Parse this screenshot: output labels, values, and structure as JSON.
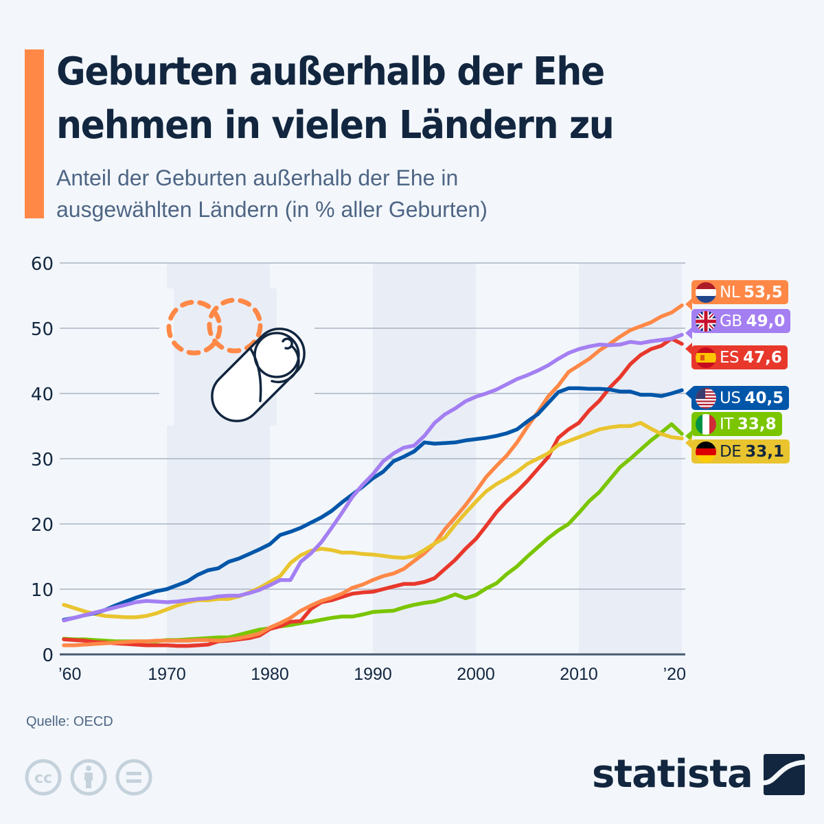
{
  "header": {
    "title_line1": "Geburten außerhalb der Ehe",
    "title_line2": "nehmen in vielen Ländern zu",
    "subtitle_line1": "Anteil der Geburten außerhalb der Ehe in",
    "subtitle_line2": "ausgewählten Ländern (in % aller Geburten)",
    "accent_color": "#ff8847"
  },
  "footer": {
    "source": "Quelle: OECD",
    "license_icons": [
      "cc-icon",
      "attribution-icon",
      "no-derivatives-icon"
    ],
    "brand": "statista"
  },
  "chart_data": {
    "type": "line",
    "title": "Anteil der Geburten außerhalb der Ehe in ausgewählten Ländern (in % aller Geburten)",
    "xlabel": "",
    "ylabel": "",
    "ylim": [
      0,
      60
    ],
    "xlim": [
      1960,
      2020
    ],
    "yticks": [
      0,
      10,
      20,
      30,
      40,
      50,
      60
    ],
    "xticks": [
      {
        "value": 1960,
        "label": "’60"
      },
      {
        "value": 1970,
        "label": "1970"
      },
      {
        "value": 1980,
        "label": "1980"
      },
      {
        "value": 1990,
        "label": "1990"
      },
      {
        "value": 2000,
        "label": "2000"
      },
      {
        "value": 2010,
        "label": "2010"
      },
      {
        "value": 2020,
        "label": "’20"
      }
    ],
    "shaded_decades": [
      [
        1970,
        1980
      ],
      [
        1990,
        2000
      ],
      [
        2010,
        2020
      ]
    ],
    "grid": true,
    "legend": "end-labels-right",
    "x": [
      1960,
      1961,
      1962,
      1963,
      1964,
      1965,
      1966,
      1967,
      1968,
      1969,
      1970,
      1971,
      1972,
      1973,
      1974,
      1975,
      1976,
      1977,
      1978,
      1979,
      1980,
      1981,
      1982,
      1983,
      1984,
      1985,
      1986,
      1987,
      1988,
      1989,
      1990,
      1991,
      1992,
      1993,
      1994,
      1995,
      1996,
      1997,
      1998,
      1999,
      2000,
      2001,
      2002,
      2003,
      2004,
      2005,
      2006,
      2007,
      2008,
      2009,
      2010,
      2011,
      2012,
      2013,
      2014,
      2015,
      2016,
      2017,
      2018,
      2019,
      2020
    ],
    "series": [
      {
        "name": "NL",
        "label": "NL",
        "end_value": "53,5",
        "color": "#ff8847",
        "text_color": "#ffffff",
        "values": [
          1.4,
          1.4,
          1.5,
          1.6,
          1.7,
          1.8,
          1.9,
          2.0,
          2.0,
          2.1,
          2.1,
          2.1,
          2.1,
          2.2,
          2.2,
          2.1,
          2.3,
          2.5,
          2.8,
          3.2,
          4.1,
          4.8,
          5.6,
          6.7,
          7.5,
          8.2,
          8.7,
          9.3,
          10.2,
          10.7,
          11.4,
          12.0,
          12.4,
          13.1,
          14.3,
          15.5,
          17.0,
          19.2,
          21.0,
          22.9,
          25.0,
          27.2,
          28.9,
          30.5,
          32.5,
          34.9,
          37.1,
          39.5,
          41.2,
          43.3,
          44.3,
          45.3,
          46.6,
          47.6,
          48.7,
          49.7,
          50.3,
          50.9,
          51.8,
          52.4,
          53.5
        ]
      },
      {
        "name": "GB",
        "label": "GB",
        "end_value": "49,0",
        "color": "#a47ff2",
        "text_color": "#ffffff",
        "values": [
          5.2,
          5.6,
          6.0,
          6.4,
          6.8,
          7.2,
          7.6,
          8.0,
          8.2,
          8.1,
          8.0,
          8.1,
          8.3,
          8.5,
          8.6,
          8.9,
          9.0,
          9.0,
          9.4,
          9.9,
          10.6,
          11.4,
          11.4,
          14.2,
          15.5,
          17.2,
          19.4,
          21.7,
          24.1,
          26.0,
          27.6,
          29.6,
          30.8,
          31.7,
          32.0,
          33.5,
          35.5,
          36.8,
          37.7,
          38.8,
          39.5,
          40.0,
          40.6,
          41.4,
          42.2,
          42.8,
          43.5,
          44.3,
          45.3,
          46.2,
          46.8,
          47.2,
          47.5,
          47.4,
          47.5,
          47.9,
          47.7,
          48.0,
          48.2,
          48.4,
          49.0
        ]
      },
      {
        "name": "ES",
        "label": "ES",
        "end_value": "47,6",
        "color": "#e8382c",
        "text_color": "#ffffff",
        "values": [
          2.3,
          2.2,
          2.1,
          1.9,
          1.8,
          1.7,
          1.6,
          1.5,
          1.4,
          1.4,
          1.4,
          1.3,
          1.3,
          1.4,
          1.5,
          2.0,
          2.1,
          2.3,
          2.5,
          2.9,
          3.9,
          4.3,
          5.0,
          5.1,
          7.0,
          8.0,
          8.3,
          8.8,
          9.3,
          9.5,
          9.6,
          10.0,
          10.4,
          10.8,
          10.8,
          11.1,
          11.7,
          13.1,
          14.5,
          16.2,
          17.7,
          19.7,
          21.8,
          23.5,
          25.0,
          26.6,
          28.4,
          30.2,
          33.2,
          34.5,
          35.5,
          37.4,
          38.9,
          40.9,
          42.5,
          44.5,
          45.9,
          46.8,
          47.3,
          48.4,
          47.6
        ]
      },
      {
        "name": "US",
        "label": "US",
        "end_value": "40,5",
        "color": "#0056a9",
        "text_color": "#ffffff",
        "values": [
          5.3,
          5.6,
          6.0,
          6.3,
          6.8,
          7.5,
          8.1,
          8.7,
          9.2,
          9.7,
          10.0,
          10.6,
          11.2,
          12.2,
          12.9,
          13.2,
          14.2,
          14.7,
          15.4,
          16.1,
          16.9,
          18.3,
          18.8,
          19.4,
          20.2,
          21.0,
          22.0,
          23.3,
          24.5,
          25.7,
          27.0,
          28.0,
          29.6,
          30.3,
          31.1,
          32.5,
          32.3,
          32.4,
          32.5,
          32.8,
          33.0,
          33.2,
          33.5,
          33.9,
          34.5,
          35.7,
          36.8,
          38.5,
          40.2,
          40.8,
          40.8,
          40.7,
          40.7,
          40.6,
          40.3,
          40.3,
          39.8,
          39.8,
          39.6,
          40.0,
          40.5
        ]
      },
      {
        "name": "IT",
        "label": "IT",
        "end_value": "33,8",
        "color": "#7ac500",
        "text_color": "#ffffff",
        "values": [
          2.4,
          2.3,
          2.3,
          2.2,
          2.1,
          2.0,
          2.0,
          2.0,
          2.0,
          2.0,
          2.2,
          2.2,
          2.3,
          2.4,
          2.5,
          2.6,
          2.6,
          3.0,
          3.4,
          3.8,
          4.0,
          4.3,
          4.5,
          4.8,
          5.0,
          5.3,
          5.6,
          5.8,
          5.8,
          6.1,
          6.5,
          6.6,
          6.7,
          7.2,
          7.6,
          7.9,
          8.1,
          8.6,
          9.2,
          8.6,
          9.1,
          10.1,
          10.9,
          12.3,
          13.5,
          15.0,
          16.4,
          17.8,
          19.0,
          20.0,
          21.7,
          23.5,
          24.9,
          26.8,
          28.7,
          30.0,
          31.4,
          32.8,
          34.0,
          35.3,
          33.8
        ]
      },
      {
        "name": "DE",
        "label": "DE",
        "end_value": "33,1",
        "color": "#e9c42f",
        "text_color": "#12263f",
        "values": [
          7.6,
          7.1,
          6.6,
          6.2,
          5.9,
          5.8,
          5.7,
          5.7,
          5.9,
          6.3,
          6.9,
          7.5,
          8.0,
          8.3,
          8.3,
          8.5,
          8.5,
          8.9,
          9.5,
          10.2,
          11.1,
          12.0,
          14.0,
          15.2,
          15.9,
          16.2,
          16.0,
          15.6,
          15.6,
          15.4,
          15.3,
          15.1,
          14.9,
          14.8,
          15.1,
          16.0,
          17.0,
          17.9,
          19.9,
          21.7,
          23.4,
          25.0,
          26.1,
          27.0,
          28.0,
          29.2,
          30.0,
          30.8,
          32.1,
          32.7,
          33.3,
          33.9,
          34.5,
          34.8,
          35.0,
          35.0,
          35.5,
          34.6,
          33.8,
          33.3,
          33.1
        ]
      }
    ]
  }
}
